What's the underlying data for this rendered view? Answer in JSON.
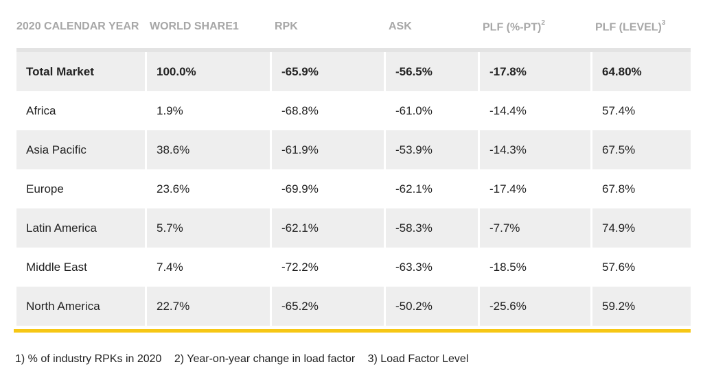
{
  "table": {
    "headers": [
      {
        "label": "2020 CALENDAR YEAR",
        "sup": ""
      },
      {
        "label": "WORLD SHARE1",
        "sup": ""
      },
      {
        "label": "RPK",
        "sup": ""
      },
      {
        "label": "ASK",
        "sup": ""
      },
      {
        "label": "PLF (%-PT)",
        "sup": "2"
      },
      {
        "label": "PLF (LEVEL)",
        "sup": "3"
      }
    ],
    "rows": [
      [
        "Total Market",
        "100.0%",
        "-65.9%",
        "-56.5%",
        "-17.8%",
        "64.80%"
      ],
      [
        "Africa",
        "1.9%",
        "-68.8%",
        "-61.0%",
        "-14.4%",
        "57.4%"
      ],
      [
        "Asia Pacific",
        "38.6%",
        "-61.9%",
        "-53.9%",
        "-14.3%",
        "67.5%"
      ],
      [
        "Europe",
        "23.6%",
        "-69.9%",
        "-62.1%",
        "-17.4%",
        "67.8%"
      ],
      [
        "Latin America",
        "5.7%",
        "-62.1%",
        "-58.3%",
        "-7.7%",
        "74.9%"
      ],
      [
        "Middle East",
        "7.4%",
        "-72.2%",
        "-63.3%",
        "-18.5%",
        "57.6%"
      ],
      [
        "North America",
        "22.7%",
        "-65.2%",
        "-50.2%",
        "-25.6%",
        "59.2%"
      ]
    ]
  },
  "footnotes": [
    "1) % of industry RPKs in 2020",
    "2) Year-on-year change in load factor",
    "3) Load Factor Level"
  ],
  "colors": {
    "accent_bar": "#f6c715",
    "shaded_row": "#eeeeee",
    "header_text": "#a7a7a7"
  }
}
